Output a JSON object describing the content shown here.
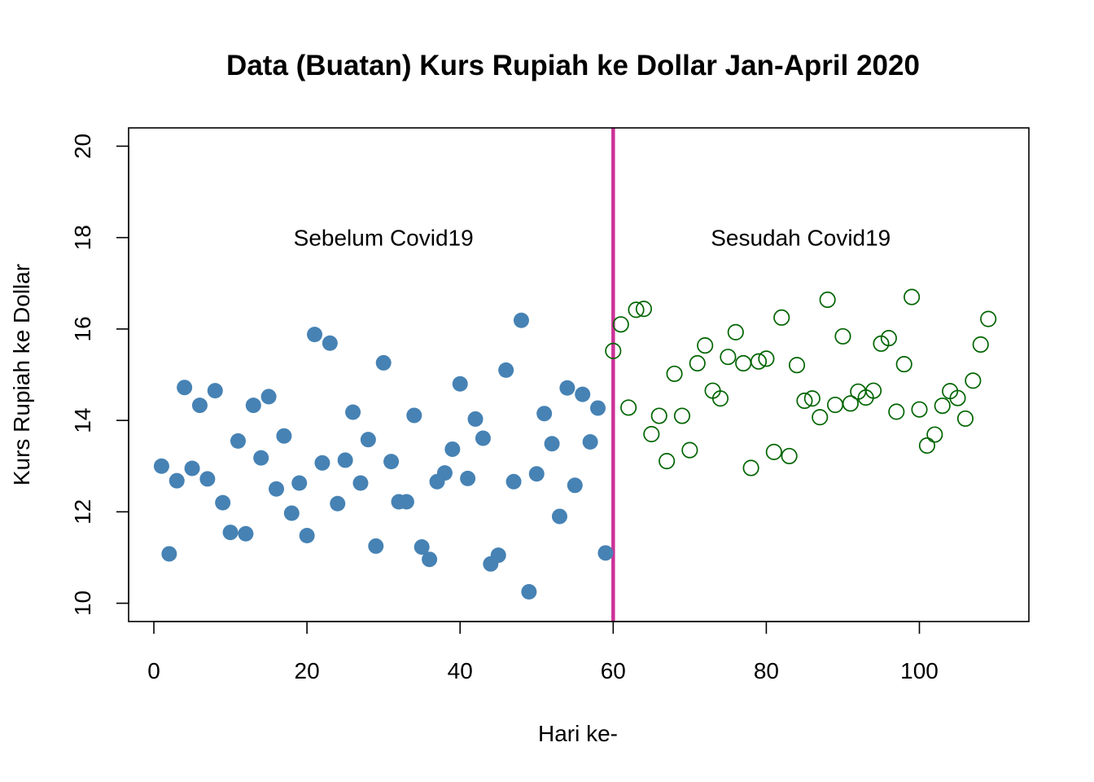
{
  "chart_data": {
    "type": "scatter",
    "title": "Data (Buatan) Kurs Rupiah ke Dollar Jan-April 2020",
    "xlabel": "Hari ke-",
    "ylabel": "Kurs Rupiah ke Dollar",
    "xlim": [
      -3.3,
      114.3
    ],
    "ylim": [
      9.6,
      20.4
    ],
    "x_ticks": [
      0,
      20,
      40,
      60,
      80,
      100
    ],
    "y_ticks": [
      10,
      12,
      14,
      16,
      18,
      20
    ],
    "grid": false,
    "legend": "none",
    "vline": {
      "x": 60,
      "color": "#CC3399"
    },
    "annotations": [
      {
        "text": "Sebelum Covid19",
        "x": 30,
        "y": 18
      },
      {
        "text": "Sesudah Covid19",
        "x": 84.5,
        "y": 18
      }
    ],
    "series": [
      {
        "marker": "filled-circle",
        "color": "#4682B4",
        "points": [
          [
            1,
            13.0
          ],
          [
            2,
            11.08
          ],
          [
            3,
            12.68
          ],
          [
            4,
            14.72
          ],
          [
            5,
            12.95
          ],
          [
            6,
            14.33
          ],
          [
            7,
            12.72
          ],
          [
            8,
            14.65
          ],
          [
            9,
            12.2
          ],
          [
            10,
            11.55
          ],
          [
            11,
            13.55
          ],
          [
            12,
            11.52
          ],
          [
            13,
            14.33
          ],
          [
            14,
            13.18
          ],
          [
            15,
            14.52
          ],
          [
            16,
            12.5
          ],
          [
            17,
            13.66
          ],
          [
            18,
            11.97
          ],
          [
            19,
            12.63
          ],
          [
            20,
            11.48
          ],
          [
            21,
            15.88
          ],
          [
            22,
            13.07
          ],
          [
            23,
            15.69
          ],
          [
            24,
            12.18
          ],
          [
            25,
            13.13
          ],
          [
            26,
            14.18
          ],
          [
            27,
            12.63
          ],
          [
            28,
            13.58
          ],
          [
            29,
            11.25
          ],
          [
            30,
            15.26
          ],
          [
            31,
            13.1
          ],
          [
            32,
            12.22
          ],
          [
            33,
            12.22
          ],
          [
            34,
            14.11
          ],
          [
            35,
            11.23
          ],
          [
            36,
            10.96
          ],
          [
            37,
            12.66
          ],
          [
            38,
            12.85
          ],
          [
            39,
            13.37
          ],
          [
            40,
            14.8
          ],
          [
            41,
            12.73
          ],
          [
            42,
            14.03
          ],
          [
            43,
            13.61
          ],
          [
            44,
            10.86
          ],
          [
            45,
            11.05
          ],
          [
            46,
            15.1
          ],
          [
            47,
            12.66
          ],
          [
            48,
            16.19
          ],
          [
            49,
            10.25
          ],
          [
            50,
            12.83
          ],
          [
            51,
            14.15
          ],
          [
            52,
            13.49
          ],
          [
            53,
            11.9
          ],
          [
            54,
            14.71
          ],
          [
            55,
            12.58
          ],
          [
            56,
            14.57
          ],
          [
            57,
            13.53
          ],
          [
            58,
            14.27
          ],
          [
            59,
            11.1
          ]
        ]
      },
      {
        "marker": "open-circle",
        "color": "#006400",
        "points": [
          [
            60,
            15.52
          ],
          [
            61,
            16.1
          ],
          [
            62,
            14.28
          ],
          [
            63,
            16.42
          ],
          [
            64,
            16.44
          ],
          [
            65,
            13.7
          ],
          [
            66,
            14.1
          ],
          [
            67,
            13.11
          ],
          [
            68,
            15.02
          ],
          [
            69,
            14.1
          ],
          [
            70,
            13.35
          ],
          [
            71,
            15.25
          ],
          [
            72,
            15.64
          ],
          [
            73,
            14.65
          ],
          [
            74,
            14.48
          ],
          [
            75,
            15.39
          ],
          [
            76,
            15.93
          ],
          [
            77,
            15.25
          ],
          [
            78,
            12.96
          ],
          [
            79,
            15.29
          ],
          [
            80,
            15.35
          ],
          [
            81,
            13.31
          ],
          [
            82,
            16.25
          ],
          [
            83,
            13.22
          ],
          [
            84,
            15.21
          ],
          [
            85,
            14.43
          ],
          [
            86,
            14.48
          ],
          [
            87,
            14.07
          ],
          [
            88,
            16.64
          ],
          [
            89,
            14.34
          ],
          [
            90,
            15.84
          ],
          [
            91,
            14.37
          ],
          [
            92,
            14.63
          ],
          [
            93,
            14.5
          ],
          [
            94,
            14.65
          ],
          [
            95,
            15.68
          ],
          [
            96,
            15.8
          ],
          [
            97,
            14.19
          ],
          [
            98,
            15.23
          ],
          [
            99,
            16.7
          ],
          [
            100,
            14.24
          ],
          [
            101,
            13.45
          ],
          [
            102,
            13.69
          ],
          [
            103,
            14.32
          ],
          [
            104,
            14.64
          ],
          [
            105,
            14.49
          ],
          [
            106,
            14.04
          ],
          [
            107,
            14.87
          ],
          [
            108,
            15.66
          ],
          [
            109,
            16.22
          ]
        ]
      }
    ]
  }
}
